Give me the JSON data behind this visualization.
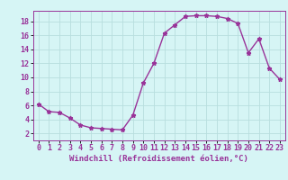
{
  "x": [
    0,
    1,
    2,
    3,
    4,
    5,
    6,
    7,
    8,
    9,
    10,
    11,
    12,
    13,
    14,
    15,
    16,
    17,
    18,
    19,
    20,
    21,
    22,
    23
  ],
  "y": [
    6.2,
    5.1,
    5.0,
    4.2,
    3.2,
    2.8,
    2.7,
    2.6,
    2.5,
    4.6,
    9.2,
    12.0,
    16.3,
    17.5,
    18.7,
    18.8,
    18.8,
    18.7,
    18.4,
    17.7,
    13.5,
    15.5,
    11.3,
    9.7
  ],
  "line_color": "#993399",
  "marker": "*",
  "marker_size": 3.5,
  "bg_color": "#d6f5f5",
  "grid_color": "#b8dede",
  "xlabel": "Windchill (Refroidissement éolien,°C)",
  "xlim": [
    -0.5,
    23.5
  ],
  "ylim": [
    1,
    19.5
  ],
  "xticks": [
    0,
    1,
    2,
    3,
    4,
    5,
    6,
    7,
    8,
    9,
    10,
    11,
    12,
    13,
    14,
    15,
    16,
    17,
    18,
    19,
    20,
    21,
    22,
    23
  ],
  "yticks": [
    2,
    4,
    6,
    8,
    10,
    12,
    14,
    16,
    18
  ],
  "xlabel_fontsize": 6.5,
  "tick_fontsize": 6,
  "line_width": 1.0
}
